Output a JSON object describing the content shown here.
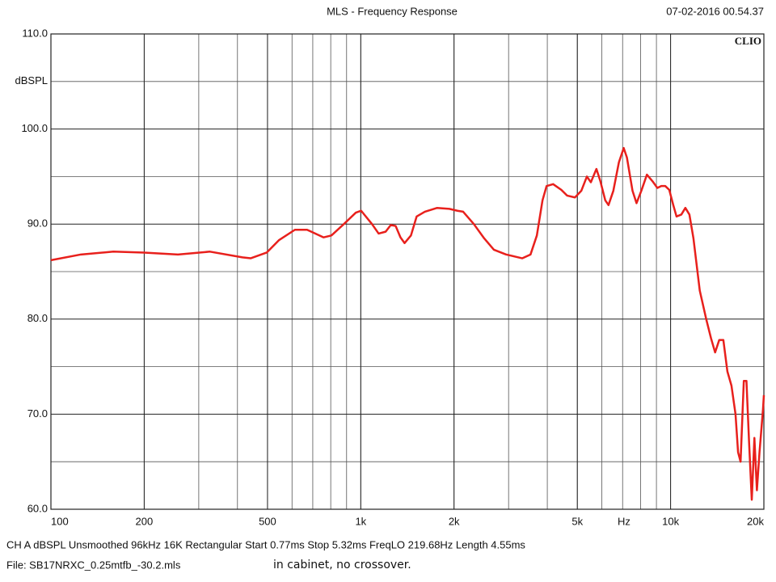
{
  "chart_data": {
    "type": "line",
    "title": "MLS - Frequency Response",
    "timestamp": "07-02-2016 00.54.37",
    "brand": "CLIO",
    "ylabel": "dBSPL",
    "xlabel": "Hz",
    "xscale": "log",
    "grid": true,
    "xlim": [
      100,
      20000
    ],
    "ylim": [
      60,
      110
    ],
    "xticks": [
      100,
      200,
      500,
      {
        "value": 1000,
        "label": "1k"
      },
      {
        "value": 2000,
        "label": "2k"
      },
      {
        "value": 5000,
        "label": "5k"
      },
      {
        "value": 10000,
        "label": "10k"
      },
      {
        "value": 20000,
        "label": "20k"
      }
    ],
    "yticks": [
      {
        "value": 60,
        "label": "60.0"
      },
      {
        "value": 70,
        "label": "70.0"
      },
      {
        "value": 80,
        "label": "80.0"
      },
      {
        "value": 90,
        "label": "90.0"
      },
      {
        "value": 100,
        "label": "100.0"
      },
      {
        "value": 110,
        "label": "110.0"
      }
    ],
    "series": [
      {
        "name": "CH A",
        "color": "#e8201c",
        "x": [
          100,
          125,
          159,
          200,
          257,
          326,
          415,
          441,
          497,
          544,
          613,
          671,
          758,
          804,
          882,
          964,
          1003,
          1087,
          1142,
          1203,
          1250,
          1296,
          1343,
          1385,
          1452,
          1515,
          1610,
          1764,
          1932,
          2052,
          2140,
          2317,
          2502,
          2689,
          2943,
          3127,
          3322,
          3531,
          3701,
          3860,
          3978,
          4177,
          4439,
          4632,
          4912,
          5150,
          5367,
          5528,
          5762,
          5935,
          6153,
          6303,
          6534,
          6810,
          7058,
          7228,
          7535,
          7763,
          8044,
          8386,
          8744,
          9064,
          9332,
          9612,
          9900,
          10200,
          10450,
          10830,
          11160,
          11500,
          11850,
          12420,
          13030,
          13500,
          13920,
          14350,
          14800,
          15250,
          15720,
          16200,
          16510,
          16820,
          17230,
          17570,
          17920,
          18280,
          18640,
          18990,
          19360,
          19870,
          20000
        ],
        "values": [
          86.2,
          86.8,
          87.1,
          87.0,
          86.8,
          87.1,
          86.5,
          86.4,
          87.0,
          88.3,
          89.4,
          89.4,
          88.6,
          88.8,
          90.0,
          91.2,
          91.4,
          90.0,
          89.0,
          89.2,
          89.9,
          89.8,
          88.6,
          88.0,
          88.8,
          90.8,
          91.3,
          91.7,
          91.6,
          91.4,
          91.3,
          90.0,
          88.5,
          87.3,
          86.8,
          86.6,
          86.4,
          86.8,
          88.8,
          92.5,
          94.0,
          94.2,
          93.6,
          93.0,
          92.8,
          93.5,
          95.0,
          94.4,
          95.8,
          94.5,
          92.5,
          92.0,
          93.5,
          96.5,
          98.0,
          97.0,
          93.5,
          92.2,
          93.5,
          95.2,
          94.5,
          93.8,
          94.0,
          94.0,
          93.6,
          92.0,
          90.8,
          91.0,
          91.7,
          91.0,
          88.5,
          83.0,
          80.0,
          78.0,
          76.5,
          77.8,
          77.8,
          74.5,
          73.0,
          70.0,
          66.0,
          65.0,
          73.5,
          73.5,
          67.0,
          61.0,
          67.5,
          62.0,
          66.0,
          70.5,
          72.0
        ]
      }
    ],
    "footer": [
      "CH A   dBSPL   Unsmoothed   96kHz   16K   Rectangular   Start 0.77ms   Stop 5.32ms   FreqLO 219.68Hz   Length 4.55ms",
      "File: SB17NRXC_0.25mtfb_-30.2.mls"
    ],
    "note": "in cabinet, no crossover."
  }
}
